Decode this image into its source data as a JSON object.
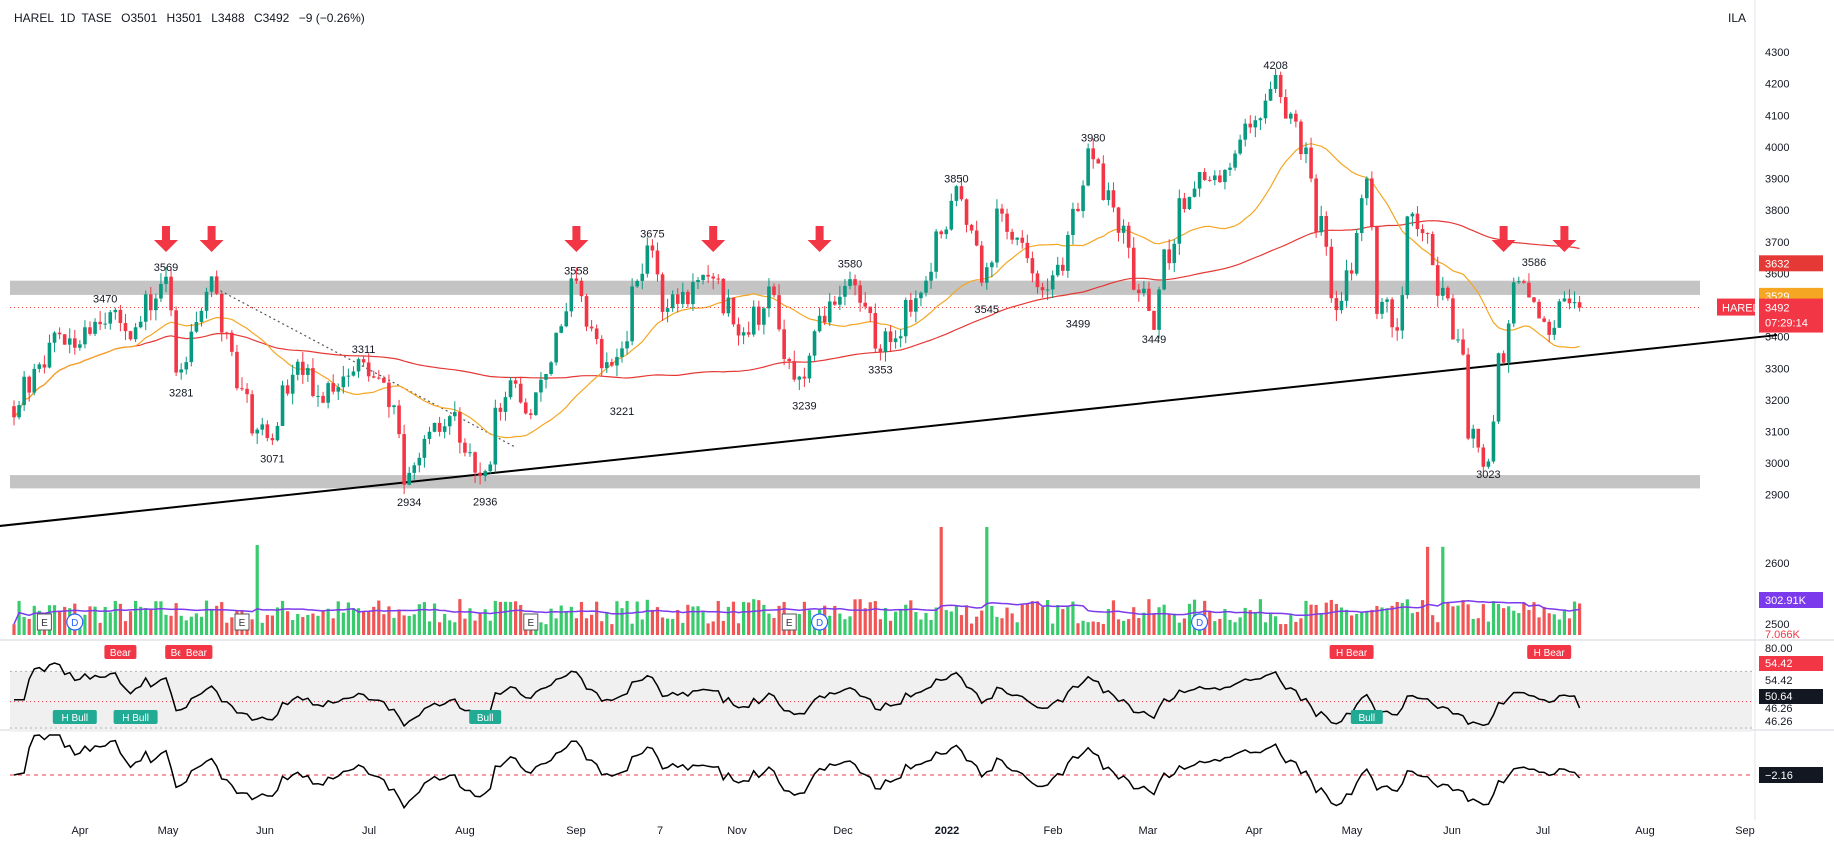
{
  "header": {
    "symbol": "HAREL",
    "interval": "1D",
    "exchange": "TASE",
    "open": "O3501",
    "high": "H3501",
    "low": "L3488",
    "close": "C3492",
    "change": "−9 (−0.26%)",
    "currency": "ILA"
  },
  "colors": {
    "up": "#22c55e",
    "down": "#ef4444",
    "ma_fast": "#f5a623",
    "ma_slow": "#e53935",
    "trendline": "#000000",
    "zone": "#b0b0b0",
    "vol_ma": "#7c3aed",
    "arrow": "#f23645"
  },
  "chart_data": [
    {
      "type": "candlestick",
      "title": "HAREL, 1D, TASE",
      "ylim": [
        2820,
        4370
      ],
      "y_ticks": [
        2900,
        3000,
        3100,
        3200,
        3300,
        3400,
        3500,
        3600,
        3700,
        3800,
        3900,
        4000,
        4100,
        4200,
        4300
      ],
      "x_ticks": [
        "Apr",
        "May",
        "Jun",
        "Jul",
        "Aug",
        "Sep",
        "7",
        "Nov",
        "Dec",
        "2022",
        "Feb",
        "Mar",
        "Apr",
        "May",
        "Jun",
        "Jul",
        "Aug",
        "Sep"
      ],
      "close_path": [
        3180,
        3240,
        3330,
        3410,
        3360,
        3440,
        3470,
        3450,
        3420,
        3500,
        3569,
        3300,
        3450,
        3560,
        3420,
        3250,
        3120,
        3080,
        3230,
        3300,
        3200,
        3250,
        3280,
        3311,
        3260,
        3180,
        2940,
        3050,
        3100,
        3140,
        3000,
        2950,
        3180,
        3240,
        3150,
        3280,
        3420,
        3558,
        3420,
        3300,
        3340,
        3580,
        3675,
        3500,
        3520,
        3560,
        3600,
        3500,
        3420,
        3470,
        3530,
        3300,
        3240,
        3440,
        3520,
        3580,
        3500,
        3380,
        3400,
        3500,
        3560,
        3700,
        3850,
        3760,
        3600,
        3780,
        3700,
        3620,
        3530,
        3640,
        3780,
        3980,
        3850,
        3720,
        3560,
        3449,
        3650,
        3830,
        3900,
        3880,
        3950,
        4050,
        4100,
        4208,
        4120,
        4000,
        3760,
        3500,
        3620,
        3870,
        3500,
        3450,
        3780,
        3700,
        3560,
        3420,
        3100,
        3023,
        3350,
        3560,
        3520,
        3420,
        3540,
        3492
      ],
      "last_price": 3492,
      "last_price_label": "3492",
      "countdown": "07:29:14",
      "symbol_tag": "HAREL",
      "ma_fast_last": 3529,
      "ma_slow_last": 3632,
      "ma_fast_last_label": "3529",
      "ma_slow_last_label": "3632",
      "price_labels": [
        {
          "t": 10,
          "v": 3569,
          "pos": "above"
        },
        {
          "t": 6,
          "v": 3470,
          "pos": "above"
        },
        {
          "t": 11,
          "v": 3281,
          "pos": "below"
        },
        {
          "t": 17,
          "v": 3071,
          "pos": "below"
        },
        {
          "t": 23,
          "v": 3311,
          "pos": "above"
        },
        {
          "t": 26,
          "v": 2934,
          "pos": "below"
        },
        {
          "t": 31,
          "v": 2936,
          "pos": "below"
        },
        {
          "t": 37,
          "v": 3558,
          "pos": "above"
        },
        {
          "t": 40,
          "v": 3221,
          "pos": "below"
        },
        {
          "t": 42,
          "v": 3675,
          "pos": "above"
        },
        {
          "t": 52,
          "v": 3239,
          "pos": "below"
        },
        {
          "t": 55,
          "v": 3580,
          "pos": "above"
        },
        {
          "t": 57,
          "v": 3353,
          "pos": "below"
        },
        {
          "t": 62,
          "v": 3850,
          "pos": "above"
        },
        {
          "t": 64,
          "v": 3545,
          "pos": "below"
        },
        {
          "t": 70,
          "v": 3499,
          "pos": "below"
        },
        {
          "t": 71,
          "v": 3980,
          "pos": "above"
        },
        {
          "t": 75,
          "v": 3449,
          "pos": "below"
        },
        {
          "t": 83,
          "v": 4208,
          "pos": "above"
        },
        {
          "t": 97,
          "v": 3023,
          "pos": "below"
        },
        {
          "t": 100,
          "v": 3586,
          "pos": "above"
        }
      ],
      "arrows": [
        10,
        13,
        37,
        46,
        53,
        98,
        102
      ],
      "zones": [
        [
          3532,
          3577
        ],
        [
          2920,
          2962
        ]
      ],
      "trendline": {
        "start": [
          -6,
          2775
        ],
        "end": [
          116,
          3405
        ]
      },
      "dotted_line": {
        "start": [
          13,
          3560
        ],
        "end": [
          33,
          3050
        ]
      },
      "event_markers": [
        {
          "t": 2,
          "label": "E"
        },
        {
          "t": 4,
          "label": "D"
        },
        {
          "t": 15,
          "label": "E"
        },
        {
          "t": 34,
          "label": "E"
        },
        {
          "t": 51,
          "label": "E"
        },
        {
          "t": 53,
          "label": "D"
        },
        {
          "t": 78,
          "label": "D"
        }
      ]
    },
    {
      "type": "bar",
      "title": "Volume",
      "last_label": "302.91K",
      "secondary_label": "7.066K",
      "axis_ticks": [
        "2600",
        "2500"
      ],
      "spikes": [
        {
          "t": 16,
          "v": 1.0
        },
        {
          "t": 61,
          "v": 1.2
        },
        {
          "t": 64,
          "v": 1.2
        },
        {
          "t": 93,
          "v": 0.98
        },
        {
          "t": 94,
          "v": 0.98
        }
      ]
    },
    {
      "type": "line",
      "title": "RSI",
      "ylim": [
        40,
        84
      ],
      "ticks_labels": [
        "80.00",
        "54.42",
        "54.42",
        "50.64",
        "46.26",
        "46.26"
      ],
      "last_value": 50.64,
      "last_label": "50.64",
      "upper_band_label": "54.42",
      "lower_band_label": "46.26",
      "divergences": [
        {
          "t": 4,
          "label": "H Bull",
          "kind": "bull"
        },
        {
          "t": 8,
          "label": "H Bull",
          "kind": "bull"
        },
        {
          "t": 7,
          "label": "Bear",
          "kind": "bear"
        },
        {
          "t": 11,
          "label": "Bear",
          "kind": "bear"
        },
        {
          "t": 12,
          "label": "Bear",
          "kind": "bear"
        },
        {
          "t": 31,
          "label": "Bull",
          "kind": "bull"
        },
        {
          "t": 88,
          "label": "H Bear",
          "kind": "bear"
        },
        {
          "t": 89,
          "label": "Bull",
          "kind": "bull"
        },
        {
          "t": 101,
          "label": "H Bear",
          "kind": "bear"
        }
      ]
    },
    {
      "type": "line",
      "title": "Oscillator",
      "last_value": -2.16,
      "last_label": "−2.16"
    }
  ]
}
